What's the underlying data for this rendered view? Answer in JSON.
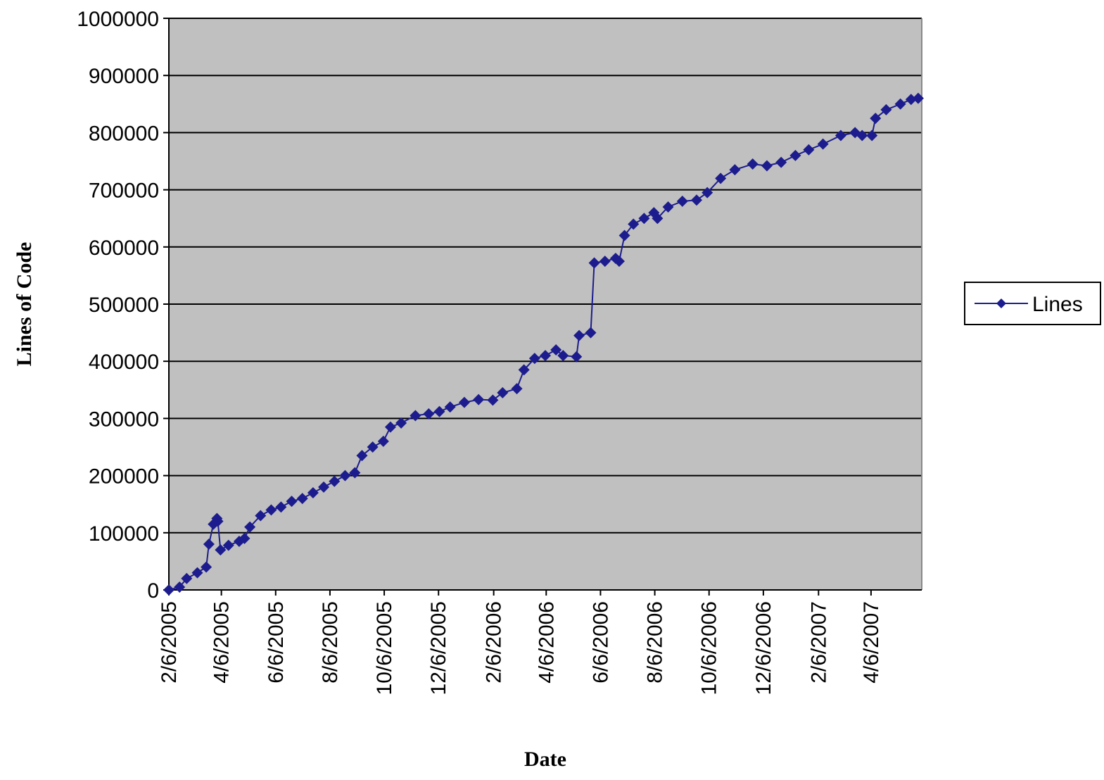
{
  "chart_data": {
    "type": "line",
    "x_label": "Date",
    "y_label": "Lines of Code",
    "x": [
      "2005-02-06",
      "2005-02-18",
      "2005-02-26",
      "2005-03-10",
      "2005-03-20",
      "2005-03-23",
      "2005-03-28",
      "2005-04-01",
      "2005-04-02",
      "2005-04-05",
      "2005-04-14",
      "2005-04-26",
      "2005-05-02",
      "2005-05-08",
      "2005-05-20",
      "2005-06-01",
      "2005-06-12",
      "2005-06-24",
      "2005-07-06",
      "2005-07-18",
      "2005-07-30",
      "2005-08-11",
      "2005-08-23",
      "2005-09-03",
      "2005-09-11",
      "2005-09-23",
      "2005-10-05",
      "2005-10-13",
      "2005-10-25",
      "2005-11-10",
      "2005-11-25",
      "2005-12-07",
      "2005-12-19",
      "2006-01-04",
      "2006-01-20",
      "2006-02-05",
      "2006-02-16",
      "2006-03-04",
      "2006-03-12",
      "2006-03-24",
      "2006-04-05",
      "2006-04-17",
      "2006-04-25",
      "2006-05-10",
      "2006-05-13",
      "2006-05-26",
      "2006-05-30",
      "2006-06-11",
      "2006-06-23",
      "2006-06-27",
      "2006-07-03",
      "2006-07-13",
      "2006-07-25",
      "2006-08-05",
      "2006-08-09",
      "2006-08-21",
      "2006-09-06",
      "2006-09-22",
      "2006-10-04",
      "2006-10-19",
      "2006-11-04",
      "2006-11-24",
      "2006-12-10",
      "2006-12-26",
      "2007-01-11",
      "2007-01-26",
      "2007-02-11",
      "2007-03-03",
      "2007-03-19",
      "2007-03-27",
      "2007-04-07",
      "2007-04-11",
      "2007-04-23",
      "2007-05-09",
      "2007-05-21",
      "2007-05-29"
    ],
    "series": [
      {
        "name": "Lines",
        "color": "#1c1c8e",
        "values": [
          0,
          5000,
          20000,
          30000,
          40000,
          80000,
          115000,
          125000,
          120000,
          70000,
          78000,
          85000,
          90000,
          110000,
          130000,
          140000,
          145000,
          155000,
          160000,
          170000,
          180000,
          190000,
          200000,
          205000,
          235000,
          250000,
          260000,
          285000,
          292000,
          305000,
          308000,
          312000,
          320000,
          328000,
          333000,
          332000,
          345000,
          352000,
          385000,
          405000,
          410000,
          420000,
          410000,
          408000,
          445000,
          450000,
          572000,
          575000,
          580000,
          575000,
          620000,
          640000,
          650000,
          660000,
          650000,
          670000,
          680000,
          682000,
          695000,
          720000,
          735000,
          745000,
          742000,
          748000,
          760000,
          770000,
          780000,
          795000,
          800000,
          795000,
          795000,
          825000,
          840000,
          850000,
          858000,
          860000
        ]
      }
    ],
    "xlim": [
      "2005-02-06",
      "2007-06-02"
    ],
    "xticks": [
      {
        "value": "2005-02-06",
        "label": "2/6/2005"
      },
      {
        "value": "2005-04-06",
        "label": "4/6/2005"
      },
      {
        "value": "2005-06-06",
        "label": "6/6/2005"
      },
      {
        "value": "2005-08-06",
        "label": "8/6/2005"
      },
      {
        "value": "2005-10-06",
        "label": "10/6/2005"
      },
      {
        "value": "2005-12-06",
        "label": "12/6/2005"
      },
      {
        "value": "2006-02-06",
        "label": "2/6/2006"
      },
      {
        "value": "2006-04-06",
        "label": "4/6/2006"
      },
      {
        "value": "2006-06-06",
        "label": "6/6/2006"
      },
      {
        "value": "2006-08-06",
        "label": "8/6/2006"
      },
      {
        "value": "2006-10-06",
        "label": "10/6/2006"
      },
      {
        "value": "2006-12-06",
        "label": "12/6/2006"
      },
      {
        "value": "2007-02-06",
        "label": "2/6/2007"
      },
      {
        "value": "2007-04-06",
        "label": "4/6/2007"
      }
    ],
    "ylim": [
      0,
      1000000
    ],
    "yticks": [
      0,
      100000,
      200000,
      300000,
      400000,
      500000,
      600000,
      700000,
      800000,
      900000,
      1000000
    ],
    "grid": true,
    "legend": "right",
    "plot_background": "#c0c0c0"
  }
}
